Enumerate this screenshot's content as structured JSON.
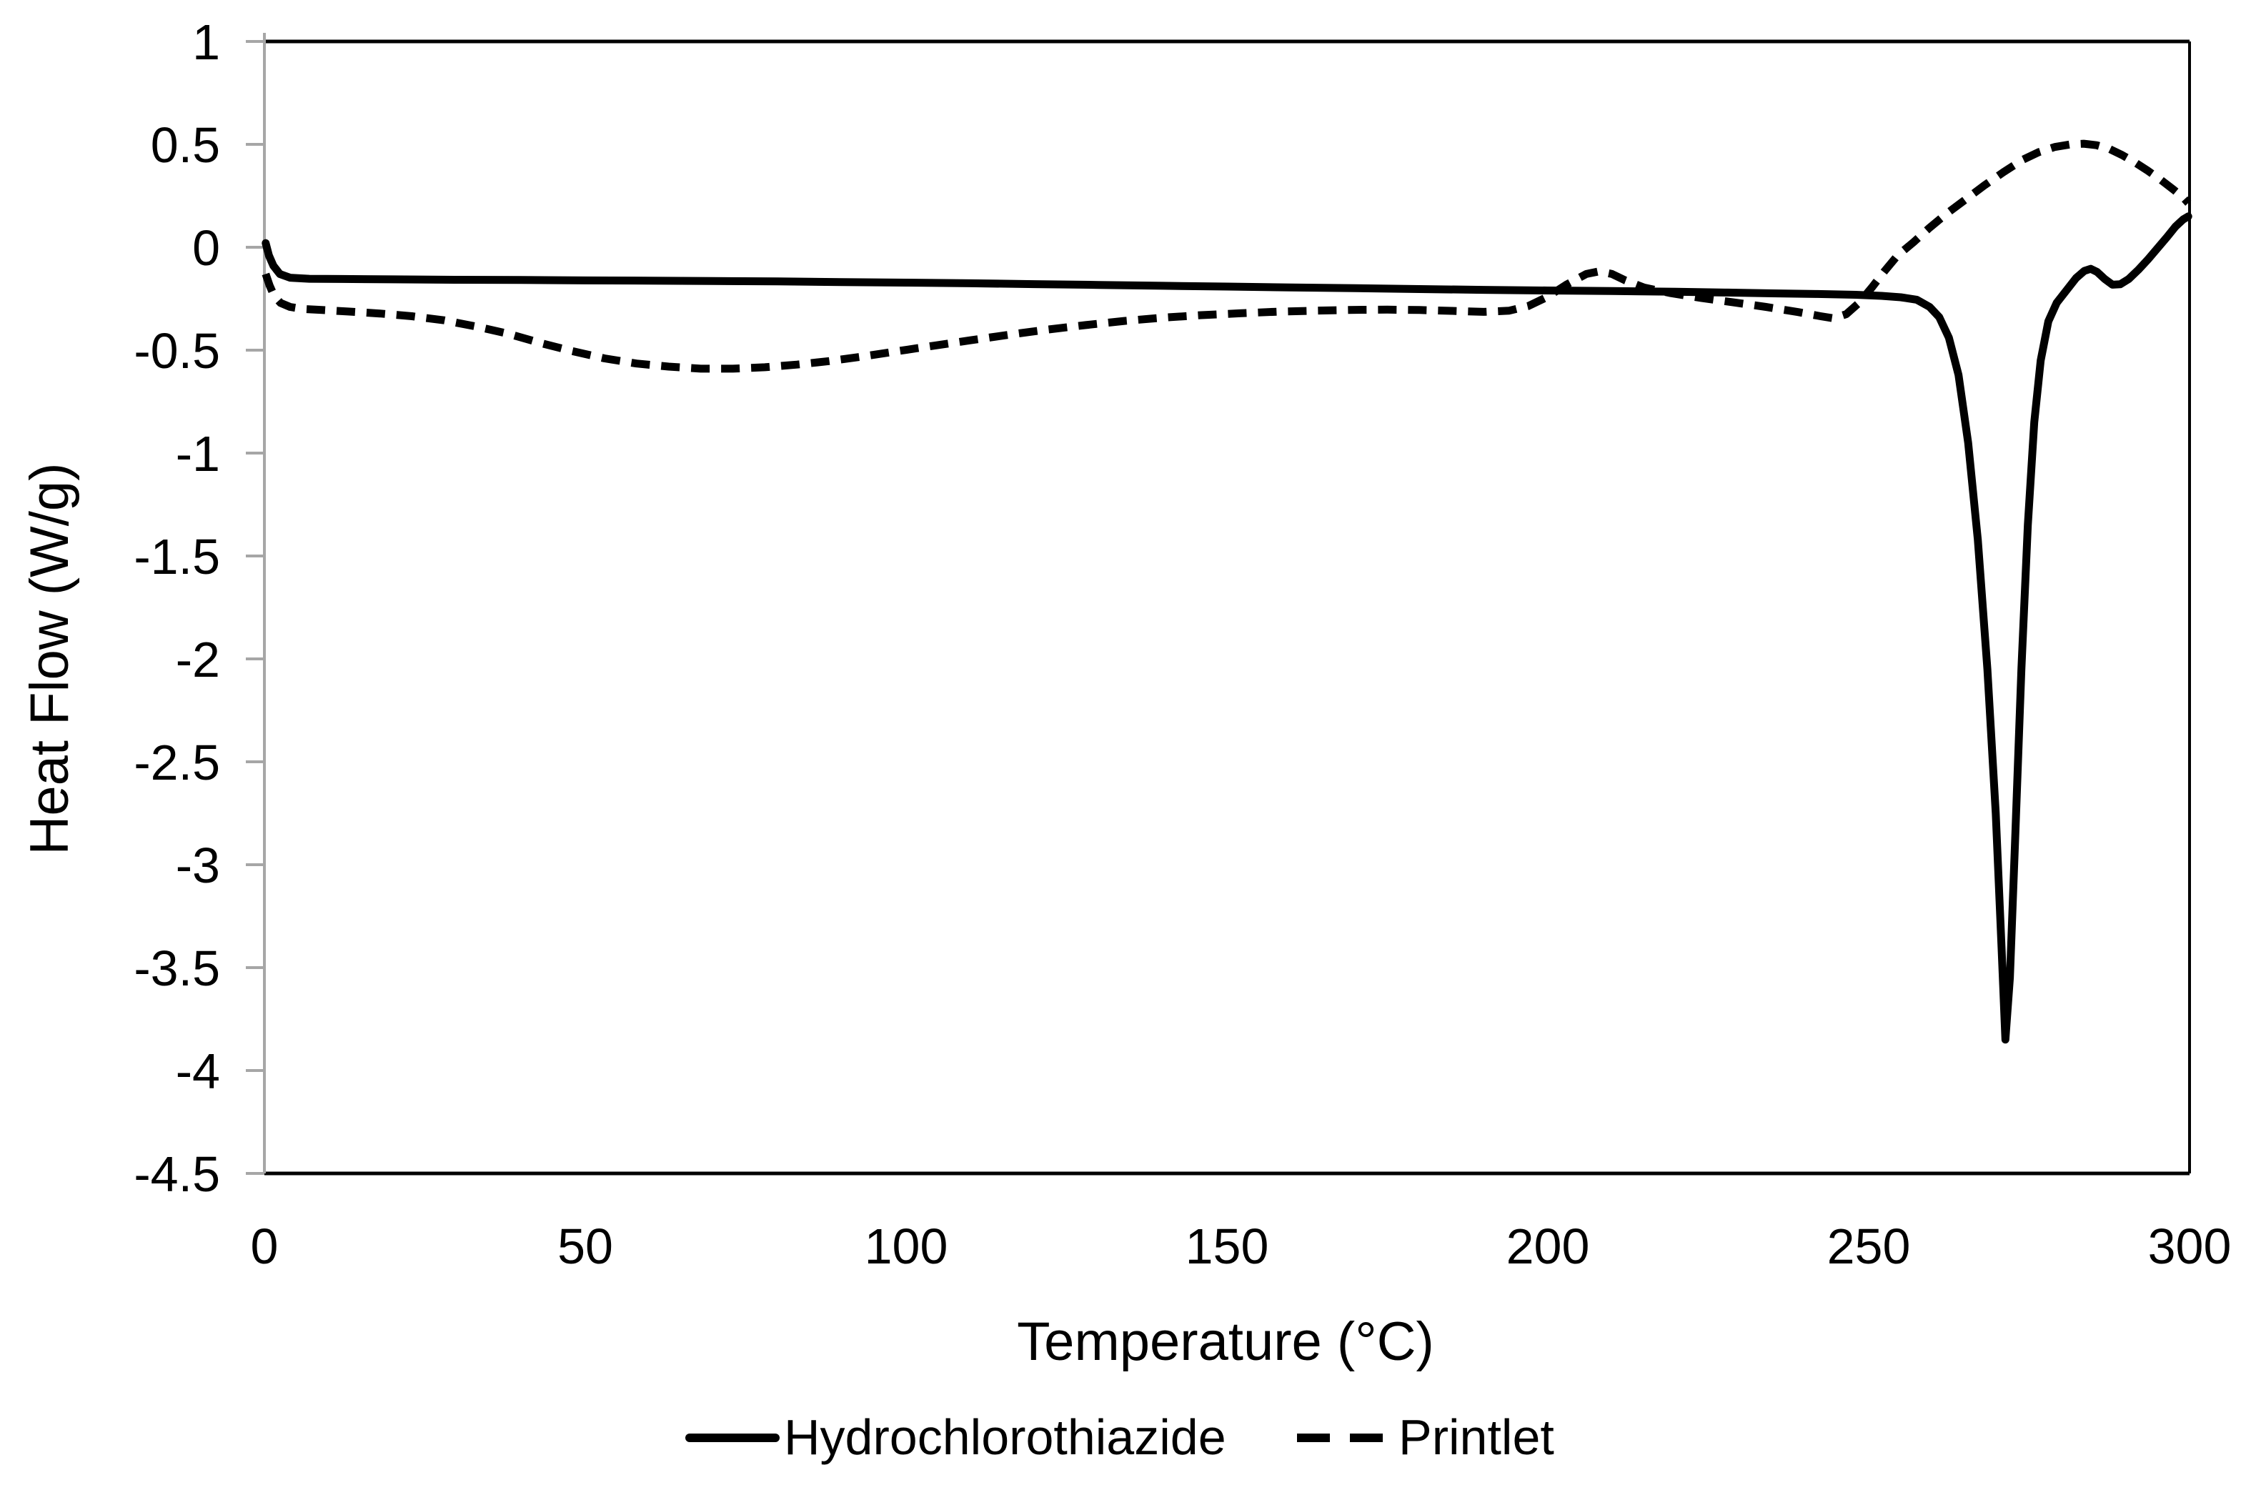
{
  "figure": {
    "background": "#ffffff"
  },
  "style": {
    "curve_color": "#000000",
    "axis_line_color": "#a6a6a6",
    "frame_color": "#000000",
    "text_color": "#000000"
  },
  "legend": {
    "items": [
      {
        "label": "Hydrochlorothiazide",
        "line_style": "solid"
      },
      {
        "label": "Printlet",
        "line_style": "dashed"
      }
    ]
  },
  "chart_data": {
    "type": "line",
    "title": "",
    "xlabel": "Temperature (°C)",
    "ylabel": "Heat Flow (W/g)",
    "xlim": [
      0,
      300
    ],
    "ylim": [
      -4.5,
      1
    ],
    "x_ticks": [
      0,
      50,
      100,
      150,
      200,
      250,
      300
    ],
    "y_ticks": [
      1,
      0.5,
      0,
      -0.5,
      -1,
      -1.5,
      -2,
      -2.5,
      -3,
      -3.5,
      -4,
      -4.5
    ],
    "grid": false,
    "legend_position": "bottom-center",
    "series": [
      {
        "name": "Hydrochlorothiazide",
        "style": "solid",
        "color": "#000000",
        "points": [
          [
            0.2,
            0.02
          ],
          [
            0.7,
            -0.04
          ],
          [
            1.4,
            -0.09
          ],
          [
            2.4,
            -0.13
          ],
          [
            4,
            -0.148
          ],
          [
            7,
            -0.153
          ],
          [
            12,
            -0.154
          ],
          [
            20,
            -0.156
          ],
          [
            30,
            -0.158
          ],
          [
            40,
            -0.159
          ],
          [
            50,
            -0.161
          ],
          [
            60,
            -0.162
          ],
          [
            70,
            -0.164
          ],
          [
            80,
            -0.166
          ],
          [
            90,
            -0.169
          ],
          [
            100,
            -0.172
          ],
          [
            110,
            -0.175
          ],
          [
            120,
            -0.179
          ],
          [
            130,
            -0.183
          ],
          [
            140,
            -0.187
          ],
          [
            150,
            -0.191
          ],
          [
            160,
            -0.195
          ],
          [
            170,
            -0.199
          ],
          [
            180,
            -0.203
          ],
          [
            190,
            -0.207
          ],
          [
            200,
            -0.21
          ],
          [
            210,
            -0.213
          ],
          [
            220,
            -0.216
          ],
          [
            228,
            -0.22
          ],
          [
            235,
            -0.224
          ],
          [
            242,
            -0.227
          ],
          [
            248,
            -0.231
          ],
          [
            252,
            -0.236
          ],
          [
            255,
            -0.243
          ],
          [
            257.5,
            -0.255
          ],
          [
            259.5,
            -0.29
          ],
          [
            261,
            -0.34
          ],
          [
            262.5,
            -0.44
          ],
          [
            264,
            -0.62
          ],
          [
            265.5,
            -0.95
          ],
          [
            267,
            -1.42
          ],
          [
            268.5,
            -2.05
          ],
          [
            269.8,
            -2.75
          ],
          [
            270.7,
            -3.4
          ],
          [
            271.3,
            -3.85
          ],
          [
            272,
            -3.55
          ],
          [
            272.8,
            -2.9
          ],
          [
            273.8,
            -2.05
          ],
          [
            274.8,
            -1.35
          ],
          [
            275.8,
            -0.85
          ],
          [
            276.8,
            -0.55
          ],
          [
            278,
            -0.36
          ],
          [
            279.3,
            -0.27
          ],
          [
            280.8,
            -0.21
          ],
          [
            282.3,
            -0.15
          ],
          [
            283.6,
            -0.115
          ],
          [
            284.6,
            -0.105
          ],
          [
            285.6,
            -0.12
          ],
          [
            286.8,
            -0.155
          ],
          [
            288,
            -0.182
          ],
          [
            289.2,
            -0.18
          ],
          [
            290.5,
            -0.155
          ],
          [
            292,
            -0.11
          ],
          [
            293.5,
            -0.06
          ],
          [
            295,
            -0.005
          ],
          [
            296.5,
            0.05
          ],
          [
            297.8,
            0.1
          ],
          [
            299,
            0.135
          ],
          [
            299.8,
            0.15
          ]
        ]
      },
      {
        "name": "Printlet",
        "style": "dashed",
        "color": "#000000",
        "points": [
          [
            0.2,
            -0.13
          ],
          [
            0.8,
            -0.185
          ],
          [
            1.5,
            -0.235
          ],
          [
            2.5,
            -0.27
          ],
          [
            4,
            -0.29
          ],
          [
            6,
            -0.3
          ],
          [
            9,
            -0.305
          ],
          [
            13,
            -0.312
          ],
          [
            18,
            -0.322
          ],
          [
            23,
            -0.335
          ],
          [
            28,
            -0.355
          ],
          [
            33,
            -0.385
          ],
          [
            38,
            -0.42
          ],
          [
            43,
            -0.465
          ],
          [
            48,
            -0.505
          ],
          [
            53,
            -0.54
          ],
          [
            58,
            -0.565
          ],
          [
            63,
            -0.58
          ],
          [
            68,
            -0.59
          ],
          [
            73,
            -0.59
          ],
          [
            78,
            -0.583
          ],
          [
            83,
            -0.57
          ],
          [
            88,
            -0.553
          ],
          [
            93,
            -0.532
          ],
          [
            98,
            -0.508
          ],
          [
            104,
            -0.48
          ],
          [
            110,
            -0.452
          ],
          [
            116,
            -0.425
          ],
          [
            122,
            -0.4
          ],
          [
            128,
            -0.378
          ],
          [
            134,
            -0.358
          ],
          [
            140,
            -0.342
          ],
          [
            146,
            -0.33
          ],
          [
            152,
            -0.321
          ],
          [
            158,
            -0.313
          ],
          [
            164,
            -0.308
          ],
          [
            170,
            -0.304
          ],
          [
            175,
            -0.303
          ],
          [
            180,
            -0.305
          ],
          [
            185,
            -0.309
          ],
          [
            190,
            -0.314
          ],
          [
            194,
            -0.308
          ],
          [
            197,
            -0.285
          ],
          [
            200,
            -0.24
          ],
          [
            203,
            -0.18
          ],
          [
            206,
            -0.13
          ],
          [
            208,
            -0.117
          ],
          [
            210,
            -0.13
          ],
          [
            212,
            -0.16
          ],
          [
            215,
            -0.196
          ],
          [
            219,
            -0.222
          ],
          [
            224,
            -0.247
          ],
          [
            229,
            -0.268
          ],
          [
            234,
            -0.29
          ],
          [
            239,
            -0.315
          ],
          [
            242.5,
            -0.335
          ],
          [
            244.5,
            -0.345
          ],
          [
            246.5,
            -0.325
          ],
          [
            248.5,
            -0.27
          ],
          [
            250.5,
            -0.195
          ],
          [
            252.5,
            -0.115
          ],
          [
            254.5,
            -0.04
          ],
          [
            257,
            0.025
          ],
          [
            259.5,
            0.095
          ],
          [
            262,
            0.16
          ],
          [
            265,
            0.23
          ],
          [
            268,
            0.3
          ],
          [
            271,
            0.365
          ],
          [
            274,
            0.425
          ],
          [
            276.5,
            0.462
          ],
          [
            279,
            0.487
          ],
          [
            281.5,
            0.5
          ],
          [
            283.5,
            0.503
          ],
          [
            285.5,
            0.496
          ],
          [
            287.5,
            0.478
          ],
          [
            289.5,
            0.448
          ],
          [
            291.5,
            0.412
          ],
          [
            293.5,
            0.372
          ],
          [
            295.5,
            0.328
          ],
          [
            297.5,
            0.28
          ],
          [
            299,
            0.242
          ],
          [
            299.8,
            0.215
          ]
        ]
      }
    ]
  }
}
